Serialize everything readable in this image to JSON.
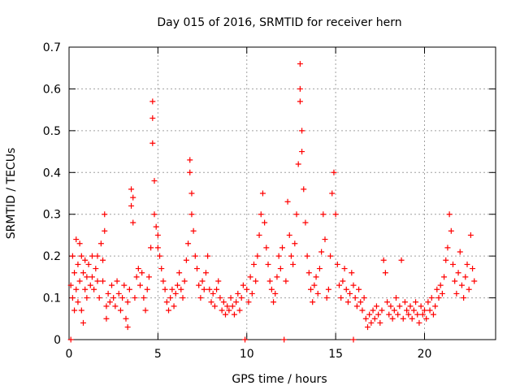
{
  "chart_data": {
    "type": "scatter",
    "title": "Day 015 of 2016, SRMTID for receiver hern",
    "xlabel": "GPS time / hours",
    "ylabel": "SRMTID / TECUs",
    "xlim": [
      0,
      24
    ],
    "ylim": [
      0,
      0.7
    ],
    "xticks": [
      0,
      5,
      10,
      15,
      20
    ],
    "yticks": [
      0,
      0.1,
      0.2,
      0.3,
      0.4,
      0.5,
      0.6,
      0.7
    ],
    "grid": true,
    "marker": "+",
    "marker_color": "#ff0000",
    "series": [
      {
        "name": "SRMTID",
        "points": [
          [
            0.1,
            0.0
          ],
          [
            0.1,
            0.13
          ],
          [
            0.2,
            0.1
          ],
          [
            0.2,
            0.2
          ],
          [
            0.3,
            0.16
          ],
          [
            0.3,
            0.07
          ],
          [
            0.4,
            0.24
          ],
          [
            0.4,
            0.12
          ],
          [
            0.5,
            0.18
          ],
          [
            0.5,
            0.09
          ],
          [
            0.6,
            0.23
          ],
          [
            0.6,
            0.14
          ],
          [
            0.7,
            0.07
          ],
          [
            0.7,
            0.2
          ],
          [
            0.8,
            0.04
          ],
          [
            0.8,
            0.16
          ],
          [
            0.9,
            0.12
          ],
          [
            0.9,
            0.19
          ],
          [
            1.0,
            0.15
          ],
          [
            1.0,
            0.1
          ],
          [
            1.1,
            0.18
          ],
          [
            1.2,
            0.13
          ],
          [
            1.3,
            0.2
          ],
          [
            1.3,
            0.15
          ],
          [
            1.4,
            0.12
          ],
          [
            1.5,
            0.17
          ],
          [
            1.6,
            0.14
          ],
          [
            1.6,
            0.2
          ],
          [
            1.7,
            0.1
          ],
          [
            1.8,
            0.23
          ],
          [
            1.9,
            0.19
          ],
          [
            1.9,
            0.14
          ],
          [
            2.0,
            0.3
          ],
          [
            2.0,
            0.26
          ],
          [
            2.1,
            0.08
          ],
          [
            2.1,
            0.05
          ],
          [
            2.2,
            0.11
          ],
          [
            2.3,
            0.09
          ],
          [
            2.4,
            0.13
          ],
          [
            2.5,
            0.1
          ],
          [
            2.6,
            0.08
          ],
          [
            2.7,
            0.14
          ],
          [
            2.8,
            0.11
          ],
          [
            2.9,
            0.07
          ],
          [
            3.0,
            0.1
          ],
          [
            3.1,
            0.13
          ],
          [
            3.2,
            0.05
          ],
          [
            3.3,
            0.09
          ],
          [
            3.3,
            0.03
          ],
          [
            3.4,
            0.12
          ],
          [
            3.5,
            0.36
          ],
          [
            3.5,
            0.32
          ],
          [
            3.6,
            0.34
          ],
          [
            3.6,
            0.28
          ],
          [
            3.7,
            0.1
          ],
          [
            3.8,
            0.15
          ],
          [
            3.9,
            0.17
          ],
          [
            4.0,
            0.13
          ],
          [
            4.1,
            0.16
          ],
          [
            4.2,
            0.1
          ],
          [
            4.3,
            0.07
          ],
          [
            4.4,
            0.12
          ],
          [
            4.5,
            0.15
          ],
          [
            4.6,
            0.22
          ],
          [
            4.7,
            0.57
          ],
          [
            4.7,
            0.53
          ],
          [
            4.7,
            0.47
          ],
          [
            4.8,
            0.38
          ],
          [
            4.8,
            0.3
          ],
          [
            4.9,
            0.27
          ],
          [
            5.0,
            0.22
          ],
          [
            5.0,
            0.25
          ],
          [
            5.1,
            0.2
          ],
          [
            5.2,
            0.17
          ],
          [
            5.3,
            0.14
          ],
          [
            5.4,
            0.12
          ],
          [
            5.5,
            0.09
          ],
          [
            5.6,
            0.07
          ],
          [
            5.7,
            0.1
          ],
          [
            5.8,
            0.12
          ],
          [
            5.9,
            0.08
          ],
          [
            6.0,
            0.11
          ],
          [
            6.1,
            0.13
          ],
          [
            6.2,
            0.16
          ],
          [
            6.3,
            0.12
          ],
          [
            6.4,
            0.1
          ],
          [
            6.5,
            0.14
          ],
          [
            6.6,
            0.19
          ],
          [
            6.7,
            0.23
          ],
          [
            6.8,
            0.43
          ],
          [
            6.8,
            0.4
          ],
          [
            6.9,
            0.35
          ],
          [
            6.9,
            0.3
          ],
          [
            7.0,
            0.26
          ],
          [
            7.1,
            0.2
          ],
          [
            7.2,
            0.17
          ],
          [
            7.3,
            0.13
          ],
          [
            7.4,
            0.1
          ],
          [
            7.5,
            0.14
          ],
          [
            7.6,
            0.12
          ],
          [
            7.7,
            0.16
          ],
          [
            7.8,
            0.2
          ],
          [
            7.9,
            0.12
          ],
          [
            8.0,
            0.09
          ],
          [
            8.1,
            0.11
          ],
          [
            8.2,
            0.08
          ],
          [
            8.3,
            0.12
          ],
          [
            8.4,
            0.14
          ],
          [
            8.5,
            0.1
          ],
          [
            8.6,
            0.07
          ],
          [
            8.7,
            0.09
          ],
          [
            8.8,
            0.06
          ],
          [
            8.9,
            0.08
          ],
          [
            9.0,
            0.07
          ],
          [
            9.1,
            0.1
          ],
          [
            9.2,
            0.08
          ],
          [
            9.3,
            0.06
          ],
          [
            9.4,
            0.09
          ],
          [
            9.5,
            0.11
          ],
          [
            9.6,
            0.07
          ],
          [
            9.7,
            0.1
          ],
          [
            9.8,
            0.13
          ],
          [
            9.9,
            0.0
          ],
          [
            10.0,
            0.12
          ],
          [
            10.1,
            0.09
          ],
          [
            10.2,
            0.15
          ],
          [
            10.3,
            0.11
          ],
          [
            10.4,
            0.18
          ],
          [
            10.5,
            0.14
          ],
          [
            10.6,
            0.2
          ],
          [
            10.7,
            0.25
          ],
          [
            10.8,
            0.3
          ],
          [
            10.9,
            0.35
          ],
          [
            11.0,
            0.28
          ],
          [
            11.1,
            0.22
          ],
          [
            11.2,
            0.18
          ],
          [
            11.3,
            0.14
          ],
          [
            11.4,
            0.12
          ],
          [
            11.5,
            0.09
          ],
          [
            11.6,
            0.11
          ],
          [
            11.7,
            0.15
          ],
          [
            11.8,
            0.2
          ],
          [
            11.9,
            0.17
          ],
          [
            12.0,
            0.22
          ],
          [
            12.1,
            0.0
          ],
          [
            12.2,
            0.14
          ],
          [
            12.3,
            0.33
          ],
          [
            12.4,
            0.25
          ],
          [
            12.5,
            0.2
          ],
          [
            12.6,
            0.18
          ],
          [
            12.7,
            0.23
          ],
          [
            12.8,
            0.3
          ],
          [
            12.9,
            0.42
          ],
          [
            13.0,
            0.66
          ],
          [
            13.0,
            0.6
          ],
          [
            13.0,
            0.57
          ],
          [
            13.1,
            0.5
          ],
          [
            13.1,
            0.45
          ],
          [
            13.2,
            0.36
          ],
          [
            13.3,
            0.28
          ],
          [
            13.4,
            0.2
          ],
          [
            13.5,
            0.16
          ],
          [
            13.6,
            0.12
          ],
          [
            13.7,
            0.09
          ],
          [
            13.8,
            0.13
          ],
          [
            13.9,
            0.15
          ],
          [
            14.0,
            0.11
          ],
          [
            14.1,
            0.17
          ],
          [
            14.2,
            0.21
          ],
          [
            14.3,
            0.3
          ],
          [
            14.4,
            0.24
          ],
          [
            14.5,
            0.1
          ],
          [
            14.6,
            0.12
          ],
          [
            14.7,
            0.2
          ],
          [
            14.8,
            0.35
          ],
          [
            14.9,
            0.4
          ],
          [
            15.0,
            0.3
          ],
          [
            15.1,
            0.18
          ],
          [
            15.2,
            0.13
          ],
          [
            15.3,
            0.1
          ],
          [
            15.4,
            0.14
          ],
          [
            15.5,
            0.17
          ],
          [
            15.6,
            0.12
          ],
          [
            15.7,
            0.09
          ],
          [
            15.8,
            0.11
          ],
          [
            15.9,
            0.16
          ],
          [
            16.0,
            0.0
          ],
          [
            16.0,
            0.13
          ],
          [
            16.1,
            0.1
          ],
          [
            16.2,
            0.08
          ],
          [
            16.3,
            0.12
          ],
          [
            16.4,
            0.09
          ],
          [
            16.5,
            0.07
          ],
          [
            16.6,
            0.1
          ],
          [
            16.7,
            0.05
          ],
          [
            16.8,
            0.03
          ],
          [
            16.9,
            0.06
          ],
          [
            17.0,
            0.04
          ],
          [
            17.1,
            0.07
          ],
          [
            17.2,
            0.05
          ],
          [
            17.3,
            0.08
          ],
          [
            17.4,
            0.06
          ],
          [
            17.5,
            0.04
          ],
          [
            17.6,
            0.07
          ],
          [
            17.7,
            0.19
          ],
          [
            17.8,
            0.16
          ],
          [
            17.9,
            0.09
          ],
          [
            18.0,
            0.06
          ],
          [
            18.1,
            0.08
          ],
          [
            18.2,
            0.05
          ],
          [
            18.3,
            0.07
          ],
          [
            18.4,
            0.1
          ],
          [
            18.5,
            0.06
          ],
          [
            18.6,
            0.08
          ],
          [
            18.7,
            0.19
          ],
          [
            18.8,
            0.05
          ],
          [
            18.9,
            0.09
          ],
          [
            19.0,
            0.07
          ],
          [
            19.1,
            0.06
          ],
          [
            19.2,
            0.08
          ],
          [
            19.3,
            0.05
          ],
          [
            19.4,
            0.07
          ],
          [
            19.5,
            0.09
          ],
          [
            19.6,
            0.06
          ],
          [
            19.7,
            0.04
          ],
          [
            19.8,
            0.08
          ],
          [
            19.9,
            0.06
          ],
          [
            20.0,
            0.07
          ],
          [
            20.1,
            0.05
          ],
          [
            20.2,
            0.09
          ],
          [
            20.3,
            0.07
          ],
          [
            20.4,
            0.1
          ],
          [
            20.5,
            0.06
          ],
          [
            20.6,
            0.08
          ],
          [
            20.7,
            0.12
          ],
          [
            20.8,
            0.1
          ],
          [
            20.9,
            0.13
          ],
          [
            21.0,
            0.11
          ],
          [
            21.1,
            0.15
          ],
          [
            21.2,
            0.19
          ],
          [
            21.3,
            0.22
          ],
          [
            21.4,
            0.3
          ],
          [
            21.5,
            0.26
          ],
          [
            21.6,
            0.18
          ],
          [
            21.7,
            0.14
          ],
          [
            21.8,
            0.11
          ],
          [
            21.9,
            0.16
          ],
          [
            22.0,
            0.21
          ],
          [
            22.1,
            0.13
          ],
          [
            22.2,
            0.1
          ],
          [
            22.3,
            0.15
          ],
          [
            22.4,
            0.18
          ],
          [
            22.5,
            0.12
          ],
          [
            22.6,
            0.25
          ],
          [
            22.7,
            0.17
          ],
          [
            22.8,
            0.14
          ]
        ]
      }
    ]
  }
}
